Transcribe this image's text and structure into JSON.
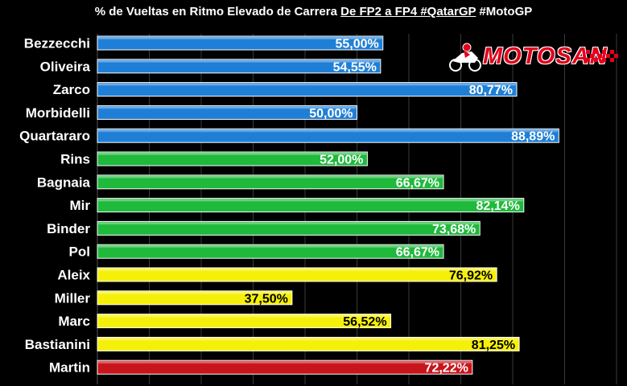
{
  "title": {
    "part1": "% de Vueltas en Ritmo Elevado de Carrera ",
    "part2": "De FP2 a FP4 #QatarGP",
    "part3": " #MotoGP"
  },
  "logo": {
    "text": "MOTOSAN"
  },
  "colors": {
    "background": "#000000",
    "grid": "#3a3a3a",
    "blue": "#1f7fd6",
    "green": "#1fb93c",
    "yellow": "#f5f00a",
    "red": "#c8141b",
    "label_white": "#ffffff",
    "label_black": "#000000"
  },
  "chart_data": {
    "type": "bar",
    "orientation": "horizontal",
    "title": "% de Vueltas en Ritmo Elevado de Carrera De FP2 a FP4 #QatarGP #MotoGP",
    "xlim": [
      0,
      100
    ],
    "grid": true,
    "categories": [
      "Bezzecchi",
      "Oliveira",
      "Zarco",
      "Morbidelli",
      "Quartararo",
      "Rins",
      "Bagnaia",
      "Mir",
      "Binder",
      "Pol",
      "Aleix",
      "Miller",
      "Marc",
      "Bastianini",
      "Martin"
    ],
    "values": [
      55.0,
      54.55,
      80.77,
      50.0,
      88.89,
      52.0,
      66.67,
      82.14,
      73.68,
      66.67,
      76.92,
      37.5,
      56.52,
      81.25,
      72.22
    ],
    "value_labels": [
      "55,00%",
      "54,55%",
      "80,77%",
      "50,00%",
      "88,89%",
      "52,00%",
      "66,67%",
      "82,14%",
      "73,68%",
      "66,67%",
      "76,92%",
      "37,50%",
      "56,52%",
      "81,25%",
      "72,22%"
    ],
    "bar_colors": [
      "blue",
      "blue",
      "blue",
      "blue",
      "blue",
      "green",
      "green",
      "green",
      "green",
      "green",
      "yellow",
      "yellow",
      "yellow",
      "yellow",
      "red"
    ]
  }
}
